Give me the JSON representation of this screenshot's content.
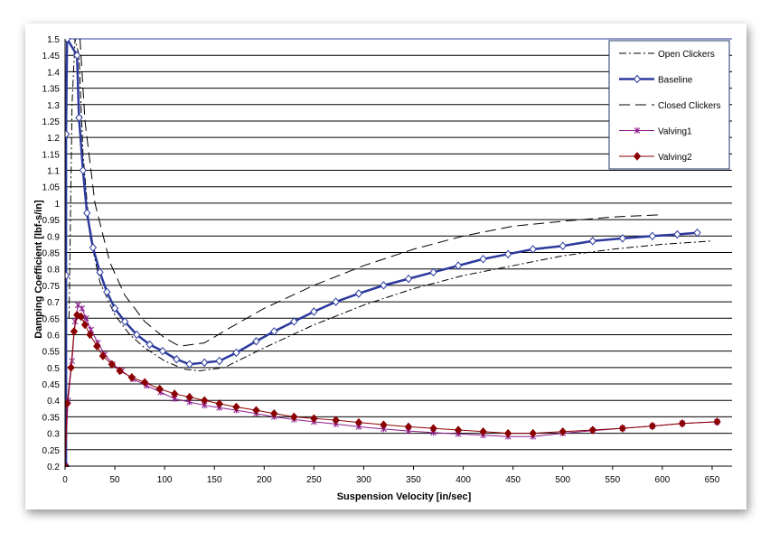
{
  "chart_data": {
    "type": "line",
    "title": "",
    "xlabel": "Suspension Velocity [in/sec]",
    "ylabel": "Damping Coefficient  [lbf-s/in]",
    "xlim": [
      0,
      670
    ],
    "ylim": [
      0.2,
      1.5
    ],
    "xticks": [
      0,
      50,
      100,
      150,
      200,
      250,
      300,
      350,
      400,
      450,
      500,
      550,
      600,
      650
    ],
    "yticks": [
      "0.2",
      "0.25",
      "0.3",
      "0.35",
      "0.4",
      "0.45",
      "0.5",
      "0.55",
      "0.6",
      "0.65",
      "0.7",
      "0.75",
      "0.8",
      "0.85",
      "0.9",
      "0.95",
      "1",
      "1.05",
      "1.1",
      "1.15",
      "1.2",
      "1.25",
      "1.3",
      "1.35",
      "1.4",
      "1.45",
      "1.5"
    ],
    "grid": "horizontal",
    "legend_position": "top-right",
    "series": [
      {
        "name": "Open Clickers",
        "color": "#000000",
        "style": "dashdot",
        "marker": "none",
        "points": [
          [
            4,
            0.65
          ],
          [
            7,
            1.3
          ],
          [
            10,
            1.5
          ],
          [
            14,
            1.45
          ],
          [
            18,
            1.15
          ],
          [
            25,
            0.9
          ],
          [
            35,
            0.76
          ],
          [
            50,
            0.66
          ],
          [
            65,
            0.6
          ],
          [
            80,
            0.56
          ],
          [
            100,
            0.52
          ],
          [
            120,
            0.495
          ],
          [
            135,
            0.49
          ],
          [
            160,
            0.5
          ],
          [
            200,
            0.56
          ],
          [
            250,
            0.63
          ],
          [
            300,
            0.69
          ],
          [
            350,
            0.74
          ],
          [
            400,
            0.78
          ],
          [
            450,
            0.81
          ],
          [
            500,
            0.84
          ],
          [
            550,
            0.86
          ],
          [
            600,
            0.875
          ],
          [
            650,
            0.885
          ]
        ]
      },
      {
        "name": "Baseline",
        "color": "#2b3a9c",
        "style": "solid",
        "marker": "diamond-open",
        "points": [
          [
            1,
            0.2
          ],
          [
            1,
            0.78
          ],
          [
            1,
            1.21
          ],
          [
            2,
            1.5
          ],
          [
            12,
            1.45
          ],
          [
            14,
            1.26
          ],
          [
            18,
            1.1
          ],
          [
            22,
            0.97
          ],
          [
            28,
            0.865
          ],
          [
            35,
            0.79
          ],
          [
            42,
            0.73
          ],
          [
            50,
            0.68
          ],
          [
            60,
            0.64
          ],
          [
            72,
            0.6
          ],
          [
            85,
            0.57
          ],
          [
            98,
            0.55
          ],
          [
            112,
            0.525
          ],
          [
            125,
            0.51
          ],
          [
            140,
            0.515
          ],
          [
            155,
            0.52
          ],
          [
            172,
            0.545
          ],
          [
            192,
            0.58
          ],
          [
            210,
            0.61
          ],
          [
            230,
            0.64
          ],
          [
            250,
            0.67
          ],
          [
            272,
            0.7
          ],
          [
            295,
            0.725
          ],
          [
            320,
            0.75
          ],
          [
            345,
            0.77
          ],
          [
            370,
            0.79
          ],
          [
            395,
            0.81
          ],
          [
            420,
            0.83
          ],
          [
            445,
            0.845
          ],
          [
            470,
            0.86
          ],
          [
            500,
            0.87
          ],
          [
            530,
            0.885
          ],
          [
            560,
            0.893
          ],
          [
            590,
            0.9
          ],
          [
            615,
            0.905
          ],
          [
            635,
            0.91
          ]
        ]
      },
      {
        "name": "Closed Clickers",
        "color": "#000000",
        "style": "longdash",
        "marker": "none",
        "points": [
          [
            15,
            1.5
          ],
          [
            20,
            1.25
          ],
          [
            30,
            1.0
          ],
          [
            45,
            0.82
          ],
          [
            60,
            0.72
          ],
          [
            80,
            0.64
          ],
          [
            100,
            0.59
          ],
          [
            115,
            0.565
          ],
          [
            140,
            0.575
          ],
          [
            165,
            0.62
          ],
          [
            200,
            0.68
          ],
          [
            250,
            0.75
          ],
          [
            300,
            0.81
          ],
          [
            350,
            0.86
          ],
          [
            400,
            0.9
          ],
          [
            450,
            0.93
          ],
          [
            500,
            0.945
          ],
          [
            550,
            0.958
          ],
          [
            600,
            0.965
          ]
        ]
      },
      {
        "name": "Valving1",
        "color": "#8b1a8b",
        "style": "solid",
        "marker": "star",
        "points": [
          [
            0,
            0.2
          ],
          [
            3,
            0.4
          ],
          [
            7,
            0.52
          ],
          [
            10,
            0.64
          ],
          [
            13,
            0.69
          ],
          [
            17,
            0.68
          ],
          [
            21,
            0.65
          ],
          [
            26,
            0.615
          ],
          [
            33,
            0.575
          ],
          [
            40,
            0.54
          ],
          [
            48,
            0.51
          ],
          [
            57,
            0.49
          ],
          [
            68,
            0.465
          ],
          [
            82,
            0.445
          ],
          [
            96,
            0.425
          ],
          [
            110,
            0.405
          ],
          [
            125,
            0.395
          ],
          [
            140,
            0.385
          ],
          [
            155,
            0.378
          ],
          [
            172,
            0.37
          ],
          [
            192,
            0.36
          ],
          [
            210,
            0.35
          ],
          [
            230,
            0.342
          ],
          [
            250,
            0.335
          ],
          [
            272,
            0.328
          ],
          [
            295,
            0.32
          ],
          [
            320,
            0.313
          ],
          [
            345,
            0.307
          ],
          [
            370,
            0.302
          ],
          [
            395,
            0.298
          ],
          [
            420,
            0.294
          ],
          [
            445,
            0.29
          ],
          [
            470,
            0.29
          ],
          [
            500,
            0.3
          ],
          [
            530,
            0.308
          ],
          [
            560,
            0.315
          ],
          [
            590,
            0.322
          ],
          [
            620,
            0.33
          ],
          [
            655,
            0.335
          ]
        ]
      },
      {
        "name": "Valving2",
        "color": "#8b0000",
        "style": "solid",
        "marker": "diamond-filled",
        "points": [
          [
            0,
            0.2
          ],
          [
            2,
            0.39
          ],
          [
            6,
            0.5
          ],
          [
            9,
            0.61
          ],
          [
            12,
            0.66
          ],
          [
            16,
            0.655
          ],
          [
            20,
            0.63
          ],
          [
            25,
            0.6
          ],
          [
            32,
            0.565
          ],
          [
            38,
            0.535
          ],
          [
            47,
            0.51
          ],
          [
            55,
            0.49
          ],
          [
            67,
            0.47
          ],
          [
            80,
            0.455
          ],
          [
            95,
            0.435
          ],
          [
            110,
            0.42
          ],
          [
            125,
            0.41
          ],
          [
            140,
            0.4
          ],
          [
            155,
            0.39
          ],
          [
            172,
            0.38
          ],
          [
            192,
            0.37
          ],
          [
            210,
            0.36
          ],
          [
            230,
            0.35
          ],
          [
            250,
            0.345
          ],
          [
            272,
            0.34
          ],
          [
            295,
            0.333
          ],
          [
            320,
            0.326
          ],
          [
            345,
            0.32
          ],
          [
            370,
            0.315
          ],
          [
            395,
            0.31
          ],
          [
            420,
            0.305
          ],
          [
            445,
            0.3
          ],
          [
            470,
            0.3
          ],
          [
            500,
            0.305
          ],
          [
            530,
            0.31
          ],
          [
            560,
            0.315
          ],
          [
            590,
            0.322
          ],
          [
            620,
            0.33
          ],
          [
            655,
            0.335
          ]
        ]
      }
    ]
  }
}
